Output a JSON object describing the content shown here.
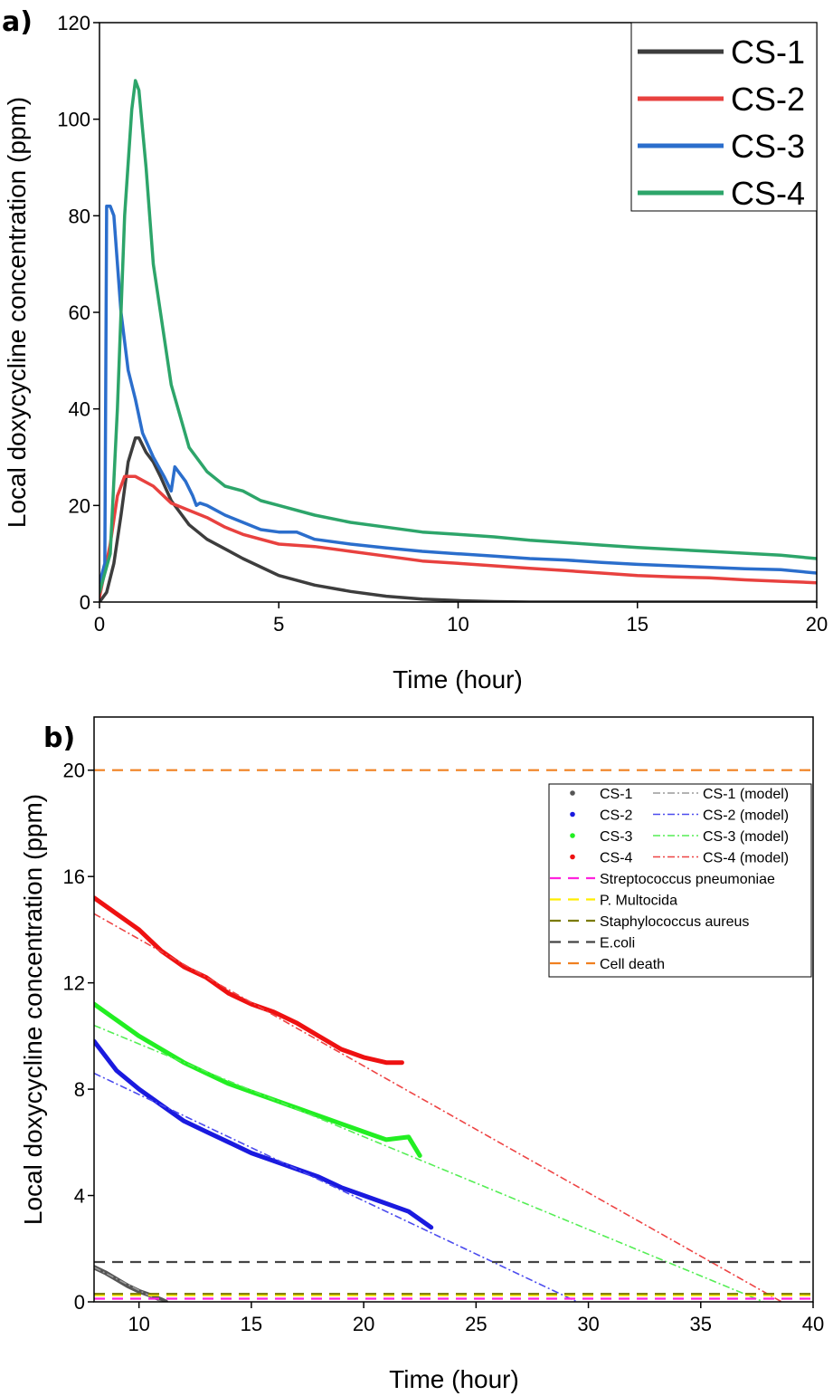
{
  "chart_data": [
    {
      "type": "line",
      "panel_label": "a)",
      "xlabel": "Time (hour)",
      "ylabel": "Local doxycycline concentration (ppm)",
      "xlim": [
        0,
        20
      ],
      "ylim": [
        0,
        120
      ],
      "xticks": [
        0,
        5,
        10,
        15,
        20
      ],
      "yticks": [
        0,
        20,
        40,
        60,
        80,
        100,
        120
      ],
      "grid": false,
      "legend_position": "top-right",
      "series": [
        {
          "name": "CS-1",
          "color": "#3d3d3d",
          "x": [
            0,
            0.2,
            0.4,
            0.6,
            0.8,
            1.0,
            1.1,
            1.3,
            1.5,
            1.7,
            2,
            2.5,
            3,
            3.5,
            4,
            5,
            6,
            7,
            8,
            9,
            10,
            11,
            12,
            15,
            20
          ],
          "y": [
            0,
            2,
            8,
            18,
            29,
            34,
            34,
            31,
            29,
            26,
            21,
            16,
            13,
            11,
            9,
            5.5,
            3.5,
            2.2,
            1.2,
            0.6,
            0.3,
            0.1,
            0,
            0,
            0
          ]
        },
        {
          "name": "CS-2",
          "color": "#e8413f",
          "x": [
            0,
            0.3,
            0.5,
            0.7,
            1.0,
            1.5,
            2,
            2.5,
            3,
            3.5,
            4,
            5,
            6,
            7,
            8,
            9,
            10,
            11,
            12,
            13,
            14,
            15,
            16,
            17,
            18,
            19,
            20
          ],
          "y": [
            1,
            12,
            22,
            26,
            26,
            24,
            20.5,
            19,
            17.5,
            15.5,
            14,
            12,
            11.5,
            10.5,
            9.5,
            8.5,
            8,
            7.5,
            7,
            6.5,
            6,
            5.5,
            5.2,
            5,
            4.6,
            4.3,
            4
          ]
        },
        {
          "name": "CS-3",
          "color": "#2b6ecc",
          "x": [
            0,
            0.15,
            0.2,
            0.3,
            0.4,
            0.6,
            0.8,
            0.9,
            1.0,
            1.2,
            1.5,
            1.8,
            2.0,
            2.1,
            2.4,
            2.6,
            2.7,
            2.8,
            3.0,
            3.5,
            4,
            4.5,
            5,
            5.5,
            6,
            7,
            8,
            9,
            10,
            11,
            12,
            13,
            14,
            15,
            16,
            17,
            18,
            19,
            20
          ],
          "y": [
            4,
            8,
            82,
            82,
            80,
            60,
            48,
            45,
            42,
            35,
            30,
            26,
            23,
            28,
            25,
            22,
            20,
            20.5,
            20,
            18,
            16.5,
            15,
            14.5,
            14.5,
            13,
            12,
            11.2,
            10.5,
            10,
            9.5,
            9,
            8.7,
            8.2,
            7.8,
            7.5,
            7.2,
            6.9,
            6.7,
            6
          ]
        },
        {
          "name": "CS-4",
          "color": "#2da56a",
          "x": [
            0,
            0.3,
            0.5,
            0.7,
            0.9,
            1.0,
            1.1,
            1.3,
            1.5,
            2.0,
            2.5,
            3,
            3.5,
            4,
            4.5,
            5,
            6,
            7,
            8,
            9,
            10,
            11,
            12,
            13,
            14,
            15,
            16,
            17,
            18,
            19,
            20
          ],
          "y": [
            2,
            10,
            40,
            80,
            102,
            108,
            106,
            90,
            70,
            45,
            32,
            27,
            24,
            23,
            21,
            20,
            18,
            16.5,
            15.5,
            14.5,
            14,
            13.5,
            12.8,
            12.3,
            11.8,
            11.3,
            10.9,
            10.5,
            10.1,
            9.7,
            9
          ]
        }
      ]
    },
    {
      "type": "line",
      "panel_label": "b)",
      "xlabel": "Time (hour)",
      "ylabel": "Local doxycycline concentration (ppm)",
      "xlim": [
        8,
        40
      ],
      "ylim": [
        0,
        22
      ],
      "xticks": [
        10,
        15,
        20,
        25,
        30,
        35,
        40
      ],
      "yticks": [
        0,
        4,
        8,
        12,
        16,
        20
      ],
      "grid": false,
      "legend_position": "top-right",
      "series": [
        {
          "name": "CS-1",
          "color": "#555555",
          "style": "dotted",
          "x": [
            8,
            8.5,
            9,
            9.5,
            10,
            10.5,
            11,
            11.2
          ],
          "y": [
            1.3,
            1.1,
            0.85,
            0.6,
            0.4,
            0.25,
            0.08,
            0
          ]
        },
        {
          "name": "CS-2",
          "color": "#1a1adf",
          "style": "dotted",
          "x": [
            8,
            9,
            10,
            11,
            12,
            13,
            14,
            15,
            16,
            17,
            18,
            19,
            20,
            21,
            22,
            23
          ],
          "y": [
            9.8,
            8.7,
            8.0,
            7.4,
            6.8,
            6.4,
            6.0,
            5.6,
            5.3,
            5.0,
            4.7,
            4.3,
            4.0,
            3.7,
            3.4,
            2.8
          ]
        },
        {
          "name": "CS-3",
          "color": "#22ee22",
          "style": "dotted",
          "x": [
            8,
            9,
            10,
            11,
            12,
            13,
            14,
            15,
            16,
            17,
            18,
            19,
            20,
            21,
            22,
            22.5
          ],
          "y": [
            11.2,
            10.6,
            10.0,
            9.5,
            9.0,
            8.6,
            8.2,
            7.9,
            7.6,
            7.3,
            7.0,
            6.7,
            6.4,
            6.1,
            6.2,
            5.5
          ]
        },
        {
          "name": "CS-4",
          "color": "#ee1111",
          "style": "dotted",
          "x": [
            8,
            9,
            10,
            11,
            12,
            13,
            14,
            15,
            16,
            17,
            18,
            19,
            20,
            21,
            21.7
          ],
          "y": [
            15.2,
            14.6,
            14.0,
            13.2,
            12.6,
            12.2,
            11.6,
            11.2,
            10.9,
            10.5,
            10.0,
            9.5,
            9.2,
            9.0,
            9.0
          ]
        },
        {
          "name": "CS-1 (model)",
          "color": "#9a9a9a",
          "style": "dash-dot",
          "x": [
            8,
            11
          ],
          "y": [
            1.3,
            0
          ]
        },
        {
          "name": "CS-2 (model)",
          "color": "#4b4bee",
          "style": "dash-dot",
          "x": [
            8,
            29.5
          ],
          "y": [
            8.6,
            0
          ]
        },
        {
          "name": "CS-3 (model)",
          "color": "#55ee55",
          "style": "dash-dot",
          "x": [
            8,
            37.8
          ],
          "y": [
            10.4,
            0
          ]
        },
        {
          "name": "CS-4 (model)",
          "color": "#ee4444",
          "style": "dash-dot",
          "x": [
            8,
            38.6
          ],
          "y": [
            14.6,
            0
          ]
        },
        {
          "name": "Streptococcus pneumoniae",
          "color": "#ff22dd",
          "style": "dashed",
          "x": [
            8,
            40
          ],
          "y": [
            0.12,
            0.12
          ]
        },
        {
          "name": "P. Multocida",
          "color": "#ffee00",
          "style": "dashed",
          "x": [
            8,
            40
          ],
          "y": [
            0.25,
            0.25
          ]
        },
        {
          "name": "Staphylococcus aureus",
          "color": "#7a7a00",
          "style": "dashed",
          "x": [
            8,
            40
          ],
          "y": [
            0.3,
            0.3
          ]
        },
        {
          "name": "E.coli",
          "color": "#444444",
          "style": "dashed",
          "x": [
            8,
            40
          ],
          "y": [
            1.5,
            1.5
          ]
        },
        {
          "name": "Cell death",
          "color": "#f08020",
          "style": "dashed",
          "x": [
            8,
            40
          ],
          "y": [
            20,
            20
          ]
        }
      ]
    }
  ]
}
